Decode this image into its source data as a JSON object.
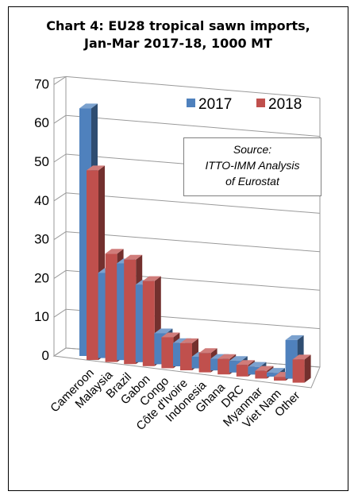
{
  "chart_data": {
    "type": "bar",
    "title": "Chart 4: EU28 tropical sawn imports, Jan-Mar 2017-18, 1000 MT",
    "title_lines": [
      "Chart 4: EU28 tropical sawn imports,",
      "Jan-Mar 2017-18, 1000 MT"
    ],
    "categories": [
      "Cameroon",
      "Malaysia",
      "Brazil",
      "Gabon",
      "Congo",
      "Côte d'Ivoire",
      "Indonesia",
      "Ghana",
      "DRC",
      "Myanmar",
      "Viet Nam",
      "Other"
    ],
    "series": [
      {
        "name": "2017",
        "color": "#4f81bd",
        "values": [
          64,
          22,
          25,
          20,
          8,
          6,
          3,
          3,
          3,
          2,
          1,
          10
        ]
      },
      {
        "name": "2018",
        "color": "#c0504d",
        "values": [
          49,
          28,
          27,
          22,
          8,
          7,
          5,
          4,
          3,
          2,
          1,
          6
        ]
      }
    ],
    "yticks": [
      0,
      10,
      20,
      30,
      40,
      50,
      60,
      70
    ],
    "ylim": [
      0,
      70
    ],
    "grid": true,
    "legend_position": "top-right",
    "annotation": [
      "Source:",
      "ITTO-IMM Analysis",
      "of Eurostat"
    ]
  }
}
